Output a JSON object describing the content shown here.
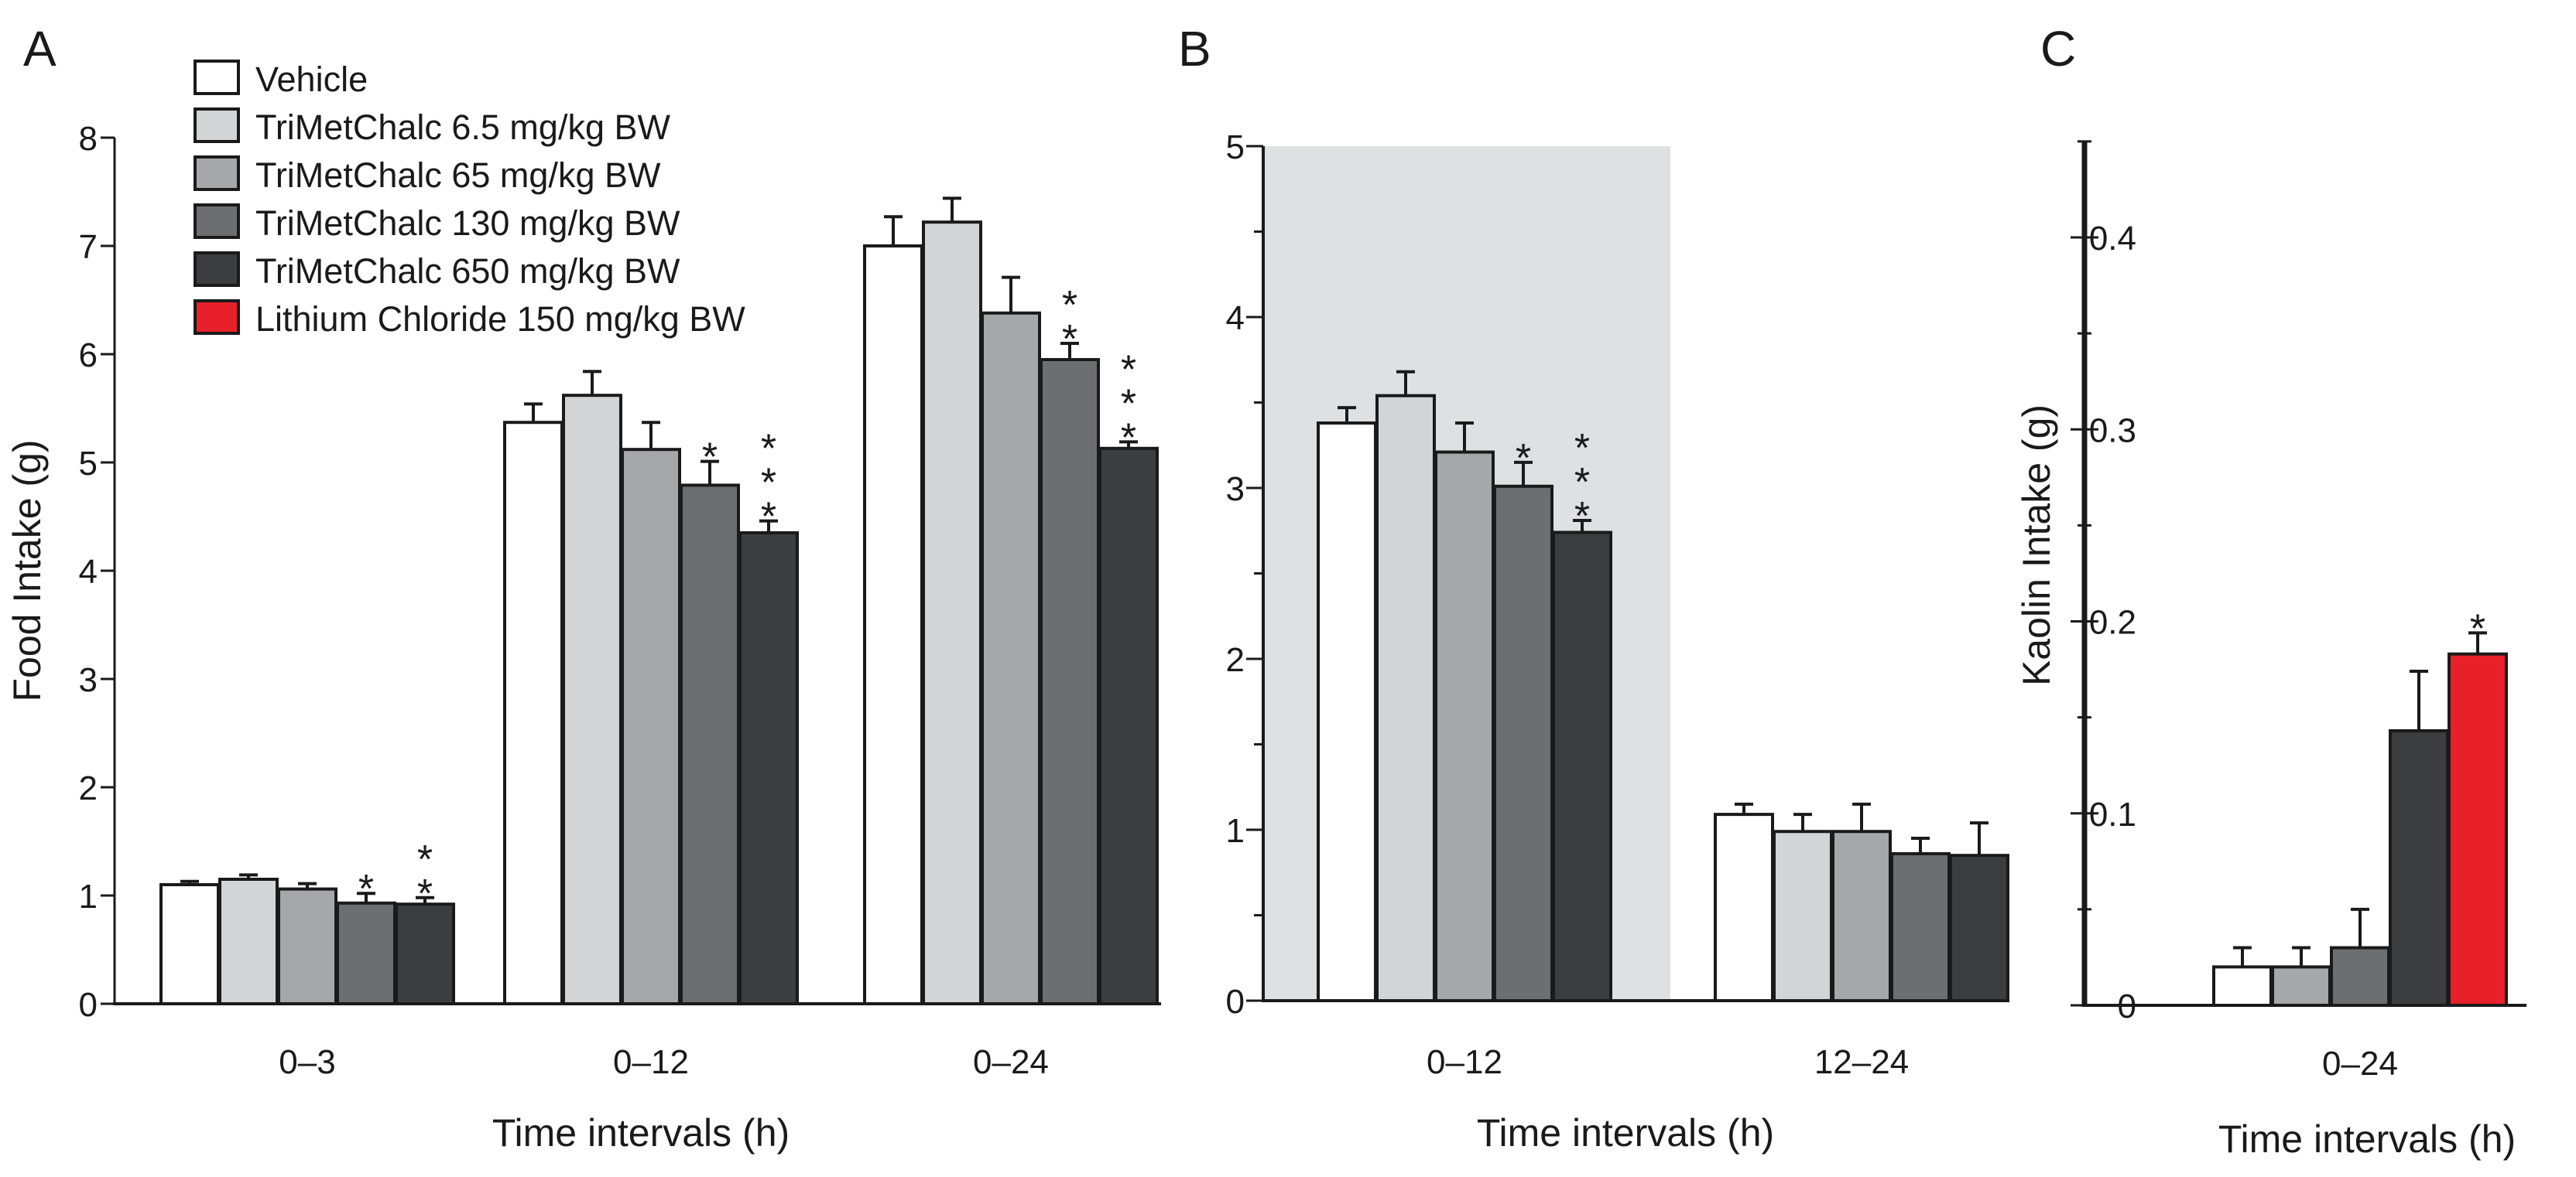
{
  "figure": {
    "legend": [
      {
        "label": "Vehicle",
        "color": "#ffffff"
      },
      {
        "label": "TriMetChalc 6.5 mg/kg BW",
        "color": "#d3d4d6"
      },
      {
        "label": "TriMetChalc 65 mg/kg BW",
        "color": "#a5a7aa"
      },
      {
        "label": "TriMetChalc 130 mg/kg BW",
        "color": "#6d6e72"
      },
      {
        "label": "TriMetChalc 650 mg/kg BW",
        "color": "#3c3d41"
      },
      {
        "label": "Lithium Chloride 150 mg/kg BW",
        "color": "#e8202a"
      }
    ],
    "shade_color": "#dfe0e1"
  },
  "chart_data": [
    {
      "panel": "A",
      "type": "bar",
      "ylabel": "Food Intake (g)",
      "xlabel": "Time intervals (h)",
      "ylim": [
        0,
        8
      ],
      "yticks": [
        "0",
        "1",
        "2",
        "3",
        "4",
        "5",
        "6",
        "7",
        "8"
      ],
      "categories": [
        "0–3",
        "0–12",
        "0–24"
      ],
      "series": [
        {
          "name": "Vehicle",
          "color": "#ffffff",
          "values": [
            1.1,
            5.37,
            7.0
          ],
          "errors": [
            0.03,
            0.17,
            0.27
          ]
        },
        {
          "name": "TriMetChalc 6.5 mg/kg BW",
          "color": "#d3d4d6",
          "values": [
            1.15,
            5.62,
            7.22
          ],
          "errors": [
            0.04,
            0.22,
            0.22
          ]
        },
        {
          "name": "TriMetChalc 65 mg/kg BW",
          "color": "#a5a7aa",
          "values": [
            1.06,
            5.12,
            6.38
          ],
          "errors": [
            0.05,
            0.25,
            0.33
          ]
        },
        {
          "name": "TriMetChalc 130 mg/kg BW",
          "color": "#6d6e72",
          "values": [
            0.93,
            4.79,
            5.95
          ],
          "errors": [
            0.09,
            0.22,
            0.15
          ]
        },
        {
          "name": "TriMetChalc 650 mg/kg BW",
          "color": "#3c3d41",
          "values": [
            0.92,
            4.35,
            5.13
          ],
          "errors": [
            0.06,
            0.11,
            0.06
          ]
        }
      ],
      "annotations": [
        {
          "category": 0,
          "series": 3,
          "text": "*"
        },
        {
          "category": 0,
          "series": 4,
          "text": "**"
        },
        {
          "category": 1,
          "series": 3,
          "text": "*"
        },
        {
          "category": 1,
          "series": 4,
          "text": "***"
        },
        {
          "category": 2,
          "series": 3,
          "text": "**"
        },
        {
          "category": 2,
          "series": 4,
          "text": "***"
        }
      ]
    },
    {
      "panel": "B",
      "type": "bar",
      "ylabel": "",
      "xlabel": "Time intervals (h)",
      "ylim": [
        0,
        5
      ],
      "yticks": [
        "0",
        "1",
        "2",
        "3",
        "4",
        "5"
      ],
      "categories": [
        "0–12",
        "12–24"
      ],
      "shaded_category": 0,
      "series": [
        {
          "name": "Vehicle",
          "color": "#ffffff",
          "values": [
            3.38,
            1.09
          ],
          "errors": [
            0.09,
            0.06
          ]
        },
        {
          "name": "TriMetChalc 6.5 mg/kg BW",
          "color": "#d3d4d6",
          "values": [
            3.54,
            0.99
          ],
          "errors": [
            0.14,
            0.1
          ]
        },
        {
          "name": "TriMetChalc 65 mg/kg BW",
          "color": "#a5a7aa",
          "values": [
            3.21,
            0.99
          ],
          "errors": [
            0.17,
            0.16
          ]
        },
        {
          "name": "TriMetChalc 130 mg/kg BW",
          "color": "#6d6e72",
          "values": [
            3.01,
            0.86
          ],
          "errors": [
            0.14,
            0.09
          ]
        },
        {
          "name": "TriMetChalc 650 mg/kg BW",
          "color": "#3c3d41",
          "values": [
            2.74,
            0.85
          ],
          "errors": [
            0.07,
            0.19
          ]
        }
      ],
      "annotations": [
        {
          "category": 0,
          "series": 3,
          "text": "*"
        },
        {
          "category": 0,
          "series": 4,
          "text": "***"
        }
      ]
    },
    {
      "panel": "C",
      "type": "bar",
      "ylabel": "Kaolin Intake (g)",
      "xlabel": "Time intervals (h)",
      "ylim": [
        0,
        0.45
      ],
      "yticks": [
        "0",
        "0.1",
        "0.2",
        "0.3",
        "0.4"
      ],
      "categories": [
        "0–24"
      ],
      "series": [
        {
          "name": "Vehicle",
          "color": "#ffffff",
          "values": [
            0.02
          ],
          "errors": [
            0.01
          ]
        },
        {
          "name": "TriMetChalc 65 mg/kg BW",
          "color": "#a5a7aa",
          "values": [
            0.02
          ],
          "errors": [
            0.01
          ]
        },
        {
          "name": "TriMetChalc 130 mg/kg BW",
          "color": "#6d6e72",
          "values": [
            0.03
          ],
          "errors": [
            0.02
          ]
        },
        {
          "name": "TriMetChalc 650 mg/kg BW",
          "color": "#3c3d41",
          "values": [
            0.143
          ],
          "errors": [
            0.031
          ]
        },
        {
          "name": "Lithium Chloride 150 mg/kg BW",
          "color": "#e8202a",
          "values": [
            0.183
          ],
          "errors": [
            0.011
          ]
        }
      ],
      "annotations": [
        {
          "category": 0,
          "series": 4,
          "text": "*"
        }
      ]
    }
  ]
}
